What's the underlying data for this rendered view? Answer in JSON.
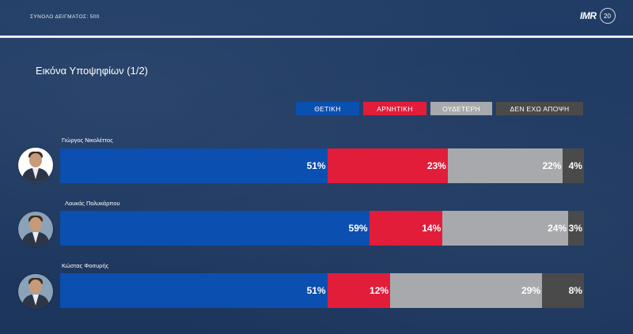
{
  "header": {
    "sample_label": "ΣΥΝΟΛΟ ΔΕΙΓΜΑΤΟΣ: 500",
    "logo_text": "IMR",
    "logo_badge": "20"
  },
  "colors": {
    "positive": "#0b4fb0",
    "negative": "#e11d3a",
    "neutral": "#a7a9ac",
    "no_opinion": "#4a4a4a",
    "background": "#1f3a63"
  },
  "chart_data": {
    "type": "bar",
    "orientation": "horizontal",
    "stacked": true,
    "title": "Εικόνα Υποψηφίων (1/2)",
    "xlim": [
      0,
      100
    ],
    "legend_position": "top-right",
    "categories": [
      "Γιώργος Νικολέττος",
      "Λουκάς Πολυκάρπου",
      "Κώστας Φοιτυρής"
    ],
    "series": [
      {
        "name": "ΘΕΤΙΚΗ",
        "color": "#0b4fb0",
        "values": [
          51,
          59,
          51
        ],
        "labels": [
          "51%",
          "59%",
          "51%"
        ]
      },
      {
        "name": "ΑΡΝΗΤΙΚΗ",
        "color": "#e11d3a",
        "values": [
          23,
          14,
          12
        ],
        "labels": [
          "23%",
          "14%",
          "12%"
        ]
      },
      {
        "name": "ΟΥΔΕΤΕΡΗ",
        "color": "#a7a9ac",
        "values": [
          22,
          24,
          29
        ],
        "labels": [
          "22%",
          "24%",
          "29%"
        ]
      },
      {
        "name": "ΔΕΝ ΕΧΩ ΑΠΟΨΗ",
        "color": "#4a4a4a",
        "values": [
          4,
          3,
          8
        ],
        "labels": [
          "4%",
          "3%",
          "8%"
        ]
      }
    ]
  }
}
